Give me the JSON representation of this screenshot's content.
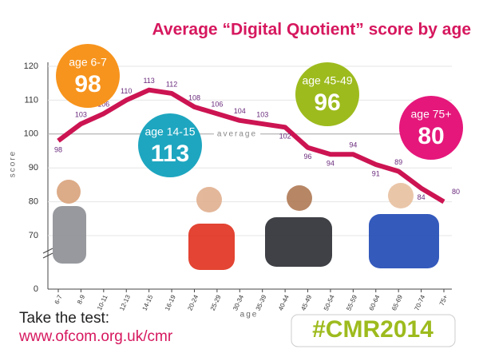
{
  "chart_data": {
    "type": "line",
    "title": "Average “Digital Quotient” score by age",
    "y_label": "score",
    "x_label": "age",
    "categories": [
      "6-7",
      "8-9",
      "10-11",
      "12-13",
      "14-15",
      "16-19",
      "20-24",
      "25-29",
      "30-34",
      "35-39",
      "40-44",
      "45-49",
      "50-54",
      "55-59",
      "60-64",
      "65-69",
      "70-74",
      "75+"
    ],
    "values": [
      98,
      103,
      106,
      110,
      113,
      112,
      108,
      106,
      104,
      103,
      102,
      96,
      94,
      94,
      91,
      89,
      84,
      80
    ],
    "color": "#cc1452",
    "ylim": [
      0,
      120
    ],
    "yticks": [
      0,
      70,
      80,
      90,
      100,
      110,
      120
    ],
    "axis_break": true,
    "grid": true,
    "reference_line": {
      "value": 100,
      "label": "average"
    },
    "annotations": [
      {
        "label": "age 6-7",
        "value": 98,
        "color": "#f7941d"
      },
      {
        "label": "age 14-15",
        "value": 113,
        "color": "#1ea6c0"
      },
      {
        "label": "age 45-49",
        "value": 96,
        "color": "#9dbb1d"
      },
      {
        "label": "age 75+",
        "value": 80,
        "color": "#e5177b"
      }
    ]
  },
  "footer": {
    "line1": "Take the test:",
    "url": "www.ofcom.org.uk/cmr",
    "tag": "#CMR2014"
  }
}
